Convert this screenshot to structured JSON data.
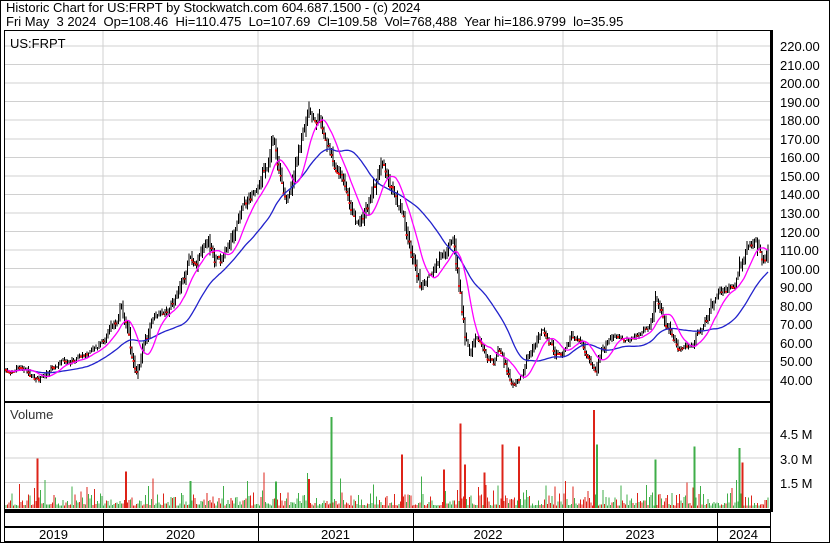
{
  "header": {
    "line1": "Historic Chart for US:FRPT by Stockwatch.com 604.687.1500 - (c) 2024",
    "line2": "Fri May  3 2024  Op=108.46  Hi=110.475  Lo=107.69  Cl=109.58  Vol=768,488  Year hi=186.9799  lo=35.95"
  },
  "price_panel": {
    "symbol_label": "US:FRPT"
  },
  "volume_panel": {
    "label": "Volume"
  },
  "axes": {
    "price_ticks": [
      "220.00",
      "210.00",
      "200.00",
      "190.00",
      "180.00",
      "170.00",
      "160.00",
      "150.00",
      "140.00",
      "130.00",
      "120.00",
      "110.00",
      "100.00",
      "90.00",
      "80.00",
      "70.00",
      "60.00",
      "50.00",
      "40.00"
    ],
    "volume_ticks": [
      "4.5 M",
      "3.0 M",
      "1.5 M"
    ],
    "years": [
      "2019",
      "2020",
      "2021",
      "2022",
      "2023",
      "2024"
    ]
  },
  "colors": {
    "up_green": "#3fae49",
    "down_red": "#dd2318",
    "close_dot_red": "#ee1111",
    "ma_fast_magenta": "#ff00ff",
    "ma_slow_blue": "#2222cc",
    "grid_gray": "#d0d0d0",
    "bar_black": "#000000"
  },
  "chart_data": {
    "type": "line",
    "title": "US:FRPT historic daily price with volume, May 2019 - May 3 2024",
    "x_unit": "decimal_year",
    "x_range": [
      2019.355,
      2024.345
    ],
    "price_axis": {
      "min": 40,
      "max": 220,
      "step": 10
    },
    "volume_axis_millions": [
      1.5,
      3.0,
      4.5
    ],
    "last_quote": {
      "date": "Fri May 3 2024",
      "open": 108.46,
      "high": 110.475,
      "low": 107.69,
      "close": 109.58,
      "volume": "768,488",
      "year_high": 186.9799,
      "year_low": 35.95
    },
    "close_path": [
      [
        2019.355,
        46
      ],
      [
        2019.42,
        44.5
      ],
      [
        2019.47,
        47
      ],
      [
        2019.52,
        43
      ],
      [
        2019.57,
        40
      ],
      [
        2019.62,
        43
      ],
      [
        2019.68,
        48
      ],
      [
        2019.73,
        50
      ],
      [
        2019.78,
        49
      ],
      [
        2019.84,
        53
      ],
      [
        2019.9,
        55
      ],
      [
        2019.96,
        58
      ],
      [
        2020.02,
        62
      ],
      [
        2020.07,
        70
      ],
      [
        2020.12,
        79
      ],
      [
        2020.16,
        62
      ],
      [
        2020.21,
        42
      ],
      [
        2020.26,
        58
      ],
      [
        2020.31,
        70
      ],
      [
        2020.36,
        74
      ],
      [
        2020.42,
        78
      ],
      [
        2020.47,
        84
      ],
      [
        2020.52,
        95
      ],
      [
        2020.56,
        108
      ],
      [
        2020.6,
        100
      ],
      [
        2020.64,
        110
      ],
      [
        2020.68,
        117
      ],
      [
        2020.72,
        106
      ],
      [
        2020.76,
        104
      ],
      [
        2020.81,
        112
      ],
      [
        2020.86,
        124
      ],
      [
        2020.9,
        133
      ],
      [
        2020.95,
        139
      ],
      [
        2021.0,
        143
      ],
      [
        2021.05,
        155
      ],
      [
        2021.1,
        170
      ],
      [
        2021.14,
        152
      ],
      [
        2021.17,
        137
      ],
      [
        2021.22,
        149
      ],
      [
        2021.26,
        160
      ],
      [
        2021.3,
        175
      ],
      [
        2021.33,
        185
      ],
      [
        2021.37,
        176
      ],
      [
        2021.4,
        181
      ],
      [
        2021.44,
        170
      ],
      [
        2021.49,
        158
      ],
      [
        2021.53,
        150
      ],
      [
        2021.57,
        138
      ],
      [
        2021.62,
        127
      ],
      [
        2021.65,
        124
      ],
      [
        2021.7,
        133
      ],
      [
        2021.75,
        143
      ],
      [
        2021.8,
        155
      ],
      [
        2021.84,
        150
      ],
      [
        2021.88,
        141
      ],
      [
        2021.93,
        127
      ],
      [
        2021.97,
        115
      ],
      [
        2022.01,
        104
      ],
      [
        2022.05,
        90
      ],
      [
        2022.1,
        96
      ],
      [
        2022.14,
        101
      ],
      [
        2022.19,
        108
      ],
      [
        2022.23,
        111
      ],
      [
        2022.27,
        117
      ],
      [
        2022.31,
        90
      ],
      [
        2022.35,
        62
      ],
      [
        2022.38,
        54
      ],
      [
        2022.42,
        63
      ],
      [
        2022.46,
        60
      ],
      [
        2022.5,
        52
      ],
      [
        2022.54,
        49
      ],
      [
        2022.57,
        56
      ],
      [
        2022.61,
        48
      ],
      [
        2022.64,
        43
      ],
      [
        2022.67,
        37
      ],
      [
        2022.71,
        41
      ],
      [
        2022.75,
        48
      ],
      [
        2022.79,
        55
      ],
      [
        2022.83,
        62
      ],
      [
        2022.86,
        66
      ],
      [
        2022.9,
        61
      ],
      [
        2022.94,
        56
      ],
      [
        2022.97,
        52
      ],
      [
        2023.02,
        57
      ],
      [
        2023.06,
        63
      ],
      [
        2023.1,
        61
      ],
      [
        2023.14,
        55
      ],
      [
        2023.18,
        49
      ],
      [
        2023.21,
        45
      ],
      [
        2023.25,
        56
      ],
      [
        2023.29,
        61
      ],
      [
        2023.33,
        63
      ],
      [
        2023.38,
        62
      ],
      [
        2023.43,
        63
      ],
      [
        2023.48,
        65
      ],
      [
        2023.53,
        67
      ],
      [
        2023.57,
        70
      ],
      [
        2023.6,
        82
      ],
      [
        2023.64,
        77
      ],
      [
        2023.68,
        70
      ],
      [
        2023.72,
        63
      ],
      [
        2023.76,
        57
      ],
      [
        2023.8,
        58
      ],
      [
        2023.84,
        60
      ],
      [
        2023.87,
        65
      ],
      [
        2023.91,
        69
      ],
      [
        2023.94,
        74
      ],
      [
        2023.98,
        84
      ],
      [
        2024.02,
        88
      ],
      [
        2024.06,
        87
      ],
      [
        2024.1,
        89
      ],
      [
        2024.13,
        94
      ],
      [
        2024.16,
        106
      ],
      [
        2024.19,
        110
      ],
      [
        2024.22,
        113
      ],
      [
        2024.25,
        116
      ],
      [
        2024.28,
        109
      ],
      [
        2024.31,
        104
      ],
      [
        2024.33,
        109.6
      ]
    ],
    "volume_spikes": [
      [
        2019.575,
        2.95,
        "down"
      ],
      [
        2020.145,
        2.15,
        "down"
      ],
      [
        2020.56,
        1.6,
        "up"
      ],
      [
        2021.12,
        1.55,
        "up"
      ],
      [
        2021.325,
        1.7,
        "down"
      ],
      [
        2021.47,
        5.5,
        "up"
      ],
      [
        2021.93,
        3.2,
        "down"
      ],
      [
        2022.21,
        2.3,
        "down"
      ],
      [
        2022.32,
        5.1,
        "down"
      ],
      [
        2022.35,
        2.6,
        "down"
      ],
      [
        2022.48,
        2.1,
        "down"
      ],
      [
        2022.6,
        3.8,
        "down"
      ],
      [
        2022.71,
        3.7,
        "down"
      ],
      [
        2023.2,
        5.9,
        "down"
      ],
      [
        2023.225,
        3.8,
        "up"
      ],
      [
        2023.6,
        2.9,
        "up"
      ],
      [
        2023.85,
        3.7,
        "up"
      ],
      [
        2024.15,
        3.6,
        "up"
      ],
      [
        2024.17,
        2.7,
        "down"
      ]
    ]
  }
}
